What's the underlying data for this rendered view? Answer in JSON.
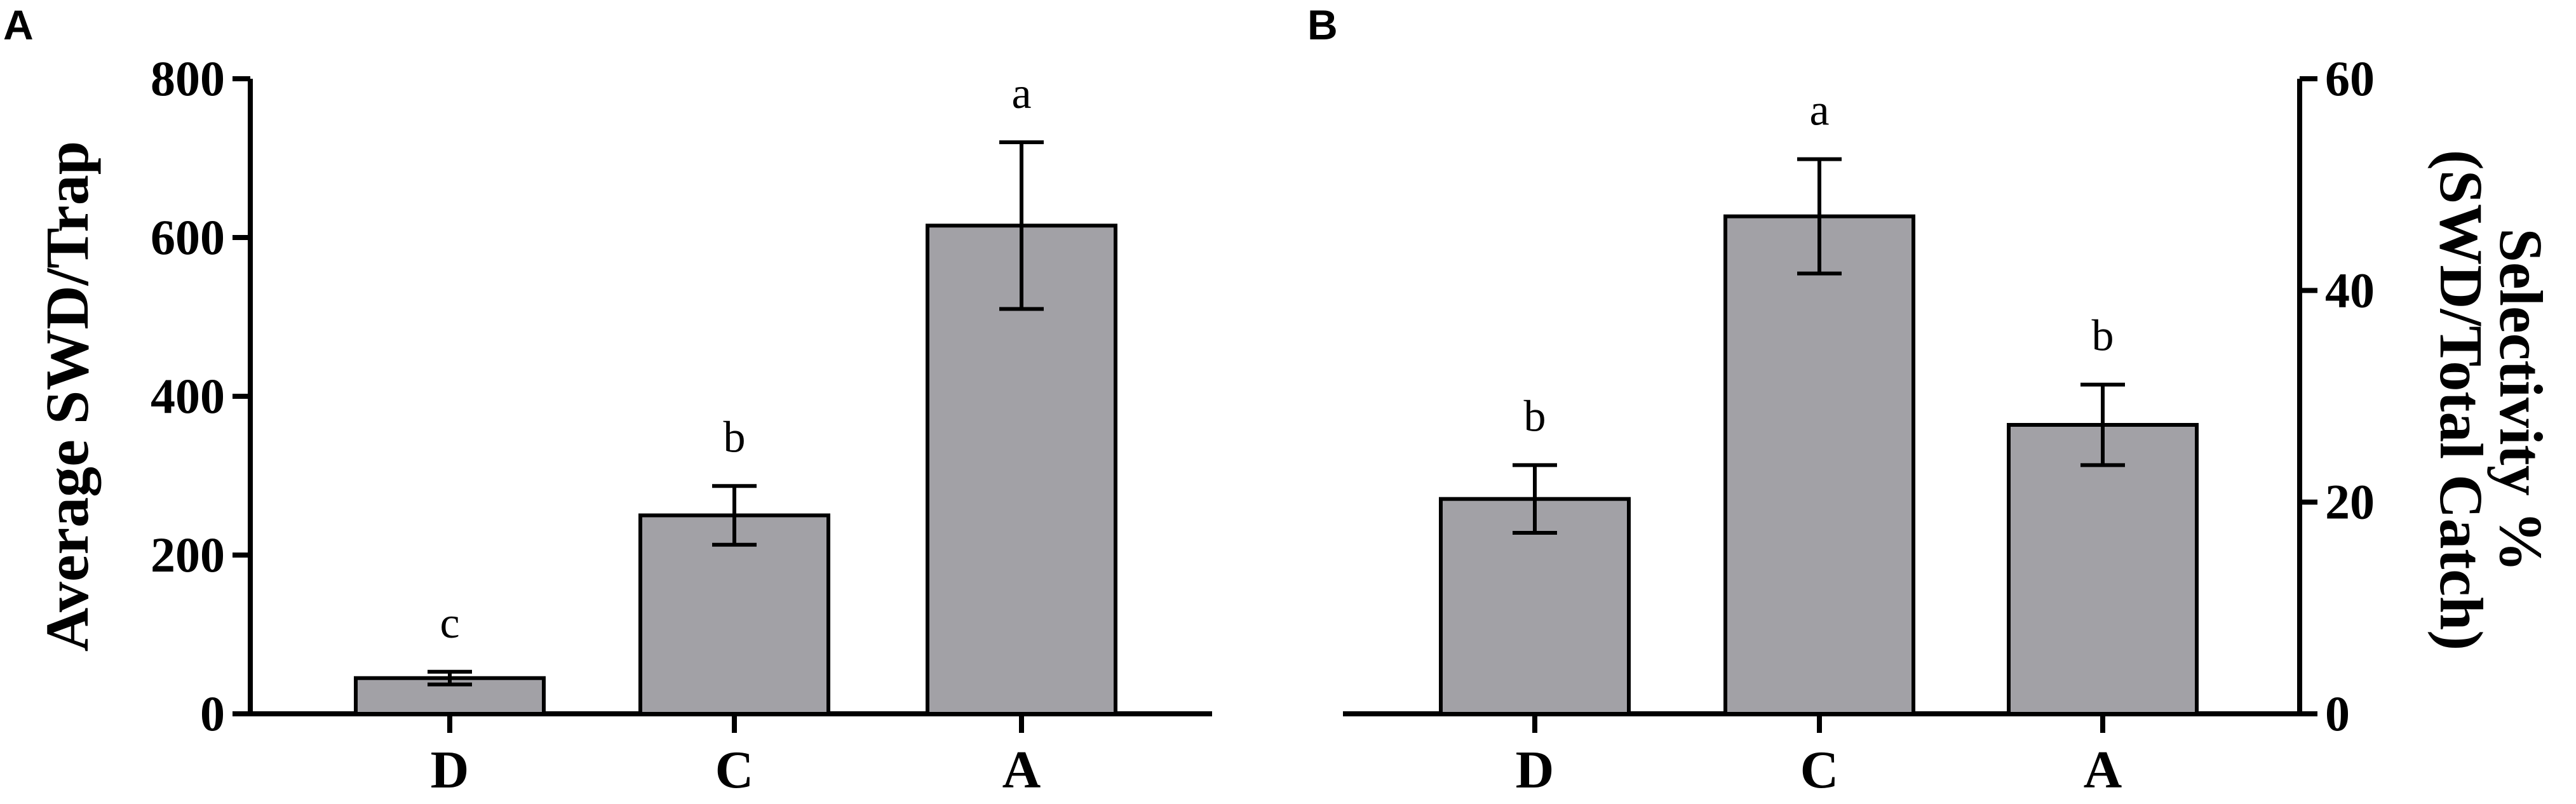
{
  "panels": {
    "A": {
      "label": "A"
    },
    "B": {
      "label": "B"
    }
  },
  "chart_data": [
    {
      "panel": "A",
      "type": "bar",
      "categories": [
        "D",
        "C",
        "A"
      ],
      "values": [
        45,
        250,
        615
      ],
      "error": [
        8,
        37,
        105
      ],
      "significance": [
        "c",
        "b",
        "a"
      ],
      "ylabel": "Average SWD/Trap",
      "ylim": [
        0,
        800
      ],
      "yticks": [
        0,
        200,
        400,
        600,
        800
      ],
      "y_axis_side": "left",
      "bar_color": "#a2a1a6",
      "grid": false
    },
    {
      "panel": "B",
      "type": "bar",
      "categories": [
        "D",
        "C",
        "A"
      ],
      "values": [
        20.3,
        47,
        27.3
      ],
      "error": [
        3.2,
        5.4,
        3.8
      ],
      "significance": [
        "b",
        "a",
        "b"
      ],
      "ylabel_line1": "Selectivity %",
      "ylabel_line2": "(SWD/Total Catch)",
      "ylim": [
        0,
        60
      ],
      "yticks": [
        0,
        20,
        40,
        60
      ],
      "y_axis_side": "right",
      "bar_color": "#a2a1a6",
      "grid": false
    }
  ]
}
